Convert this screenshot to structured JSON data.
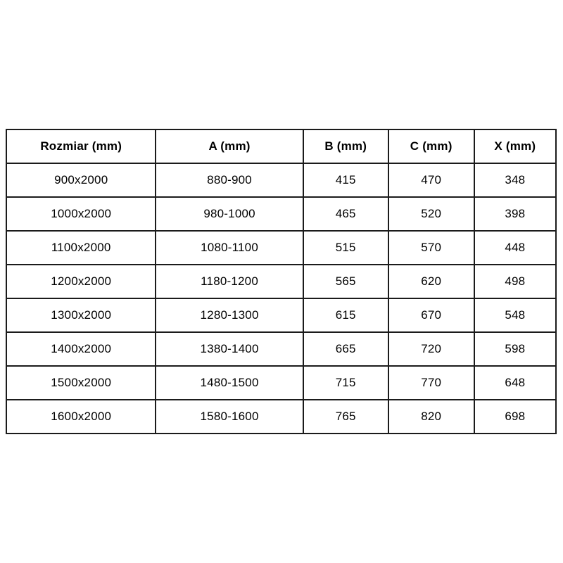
{
  "chart_data": {
    "type": "table",
    "title": "",
    "columns": [
      "Rozmiar (mm)",
      "A (mm)",
      "B (mm)",
      "C (mm)",
      "X (mm)"
    ],
    "rows": [
      [
        "900x2000",
        "880-900",
        "415",
        "470",
        "348"
      ],
      [
        "1000x2000",
        "980-1000",
        "465",
        "520",
        "398"
      ],
      [
        "1100x2000",
        "1080-1100",
        "515",
        "570",
        "448"
      ],
      [
        "1200x2000",
        "1180-1200",
        "565",
        "620",
        "498"
      ],
      [
        "1300x2000",
        "1280-1300",
        "615",
        "670",
        "548"
      ],
      [
        "1400x2000",
        "1380-1400",
        "665",
        "720",
        "598"
      ],
      [
        "1500x2000",
        "1480-1500",
        "715",
        "770",
        "648"
      ],
      [
        "1600x2000",
        "1580-1600",
        "765",
        "820",
        "698"
      ]
    ],
    "layout": {
      "grid": true,
      "header_bold": true
    }
  },
  "style": {
    "border_color": "#1b1b1b",
    "text_color": "#000000",
    "background_color": "#ffffff"
  }
}
